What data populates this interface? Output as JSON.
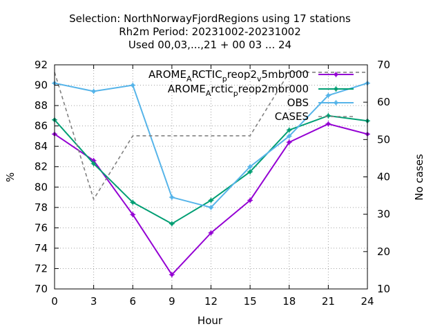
{
  "chart_data": {
    "type": "line",
    "title": [
      "Selection: NorthNorwayFjordRegions using    17 stations",
      "Rh2m   Period: 20231002-20231002",
      "Used  00,03,...,21  + 00 03 ... 24"
    ],
    "xlabel": "Hour",
    "ylabel": "%",
    "y2label": "No cases",
    "x": [
      0,
      3,
      6,
      9,
      12,
      15,
      18,
      21,
      24
    ],
    "xlim": [
      0,
      24
    ],
    "ylim": [
      70,
      92
    ],
    "y2lim": [
      10,
      70
    ],
    "x_ticks": [
      "0",
      "3",
      "6",
      "9",
      "12",
      "15",
      "18",
      "21",
      "24"
    ],
    "y_ticks": [
      "70",
      "72",
      "74",
      "76",
      "78",
      "80",
      "82",
      "84",
      "86",
      "88",
      "90",
      "92"
    ],
    "y2_ticks": [
      "10",
      "20",
      "30",
      "40",
      "50",
      "60",
      "70"
    ],
    "grid": true,
    "legend_position": "top-right",
    "series": [
      {
        "name": [
          "AROME",
          "A",
          "RCTIC",
          "p",
          "reop2",
          "v",
          "5mbr000"
        ],
        "color": "#9400d3",
        "axis": "y",
        "style": "solid",
        "values": [
          85.2,
          82.6,
          77.3,
          71.4,
          75.5,
          78.7,
          84.4,
          86.2,
          85.2
        ]
      },
      {
        "name": [
          "AROME",
          "A",
          "rctic",
          "p",
          "reop2mbr000"
        ],
        "color": "#009e73",
        "axis": "y",
        "style": "solid",
        "values": [
          86.6,
          82.3,
          78.5,
          76.4,
          78.7,
          81.5,
          85.6,
          87.0,
          86.5
        ]
      },
      {
        "name": [
          "OBS"
        ],
        "color": "#56b4e9",
        "axis": "y",
        "style": "solid",
        "values": [
          90.2,
          89.4,
          90.0,
          79.0,
          78.0,
          82.0,
          85.0,
          89.0,
          90.2
        ]
      },
      {
        "name": [
          "CASES"
        ],
        "color": "#808080",
        "axis": "y2",
        "style": "dashed",
        "values": [
          68,
          34,
          51,
          51,
          51,
          51,
          68,
          68,
          68
        ]
      }
    ]
  }
}
